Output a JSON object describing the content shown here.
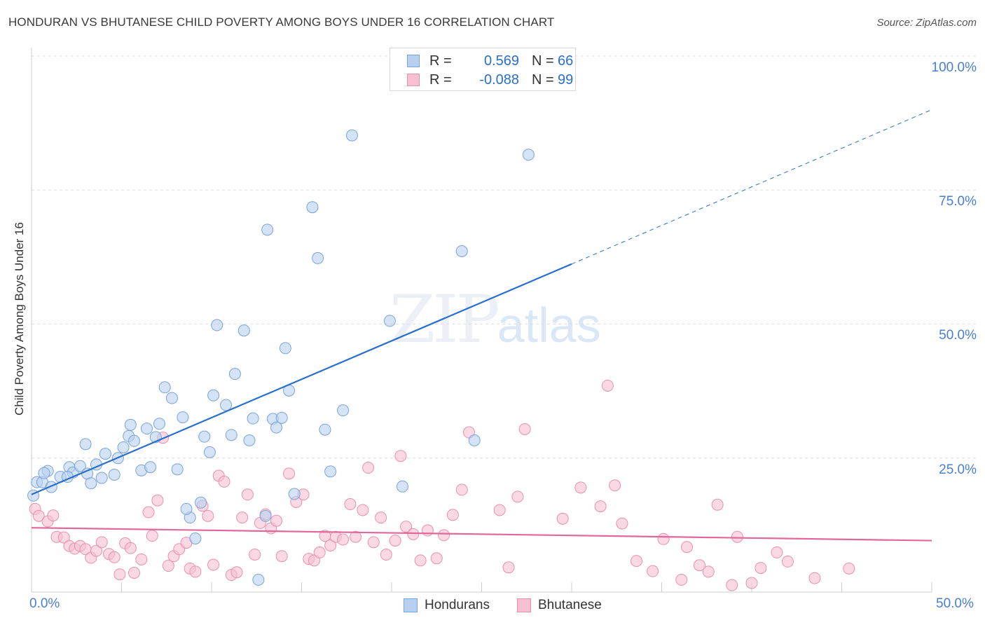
{
  "title": "HONDURAN VS BHUTANESE CHILD POVERTY AMONG BOYS UNDER 16 CORRELATION CHART",
  "source": "Source: ZipAtlas.com",
  "watermark": {
    "part1": "ZIP",
    "part2": "atlas"
  },
  "legend_top": [
    {
      "r_label": "R =",
      "r_value": "0.569",
      "n_label": "N =",
      "n_value": "66"
    },
    {
      "r_label": "R =",
      "r_value": "-0.088",
      "n_label": "N =",
      "n_value": "99"
    }
  ],
  "legend_bottom": [
    "Hondurans",
    "Bhutanese"
  ],
  "colors": {
    "hondurans_fill": "#b8d0f0",
    "hondurans_stroke": "#7aa3d9",
    "hondurans_line": "#2a6fcc",
    "bhutanese_fill": "#f7c0d2",
    "bhutanese_stroke": "#e890b0",
    "bhutanese_line": "#e0689a",
    "tick_text": "#4a7fd0",
    "grid": "#dddddd"
  },
  "chart_data": {
    "type": "scatter",
    "title": "HONDURAN VS BHUTANESE CHILD POVERTY AMONG BOYS UNDER 16 CORRELATION CHART",
    "xlabel": "",
    "ylabel": "Child Poverty Among Boys Under 16",
    "xlim": [
      0,
      50
    ],
    "ylim": [
      0,
      100
    ],
    "x_tick_labels": [
      "0.0%",
      "50.0%"
    ],
    "y_ticks": [
      25,
      50,
      75,
      100
    ],
    "y_tick_labels": [
      "25.0%",
      "50.0%",
      "75.0%",
      "100.0%"
    ],
    "grid": true,
    "series": [
      {
        "name": "Hondurans",
        "stats": {
          "R": 0.569,
          "N": 66
        },
        "trend": {
          "x0": 0,
          "y0": 18.2,
          "x1": 30,
          "y1": 61.2,
          "dashed_to_x": 50,
          "dashed_to_y": 90.0
        },
        "points": [
          [
            0.1,
            18.0
          ],
          [
            0.3,
            20.5
          ],
          [
            0.6,
            20.5
          ],
          [
            0.9,
            22.6
          ],
          [
            1.6,
            21.5
          ],
          [
            2.1,
            23.3
          ],
          [
            2.3,
            22.3
          ],
          [
            2.7,
            23.5
          ],
          [
            3.1,
            22.1
          ],
          [
            3.3,
            20.3
          ],
          [
            3.6,
            23.8
          ],
          [
            3.9,
            21.3
          ],
          [
            4.1,
            25.8
          ],
          [
            4.6,
            21.9
          ],
          [
            4.8,
            25.0
          ],
          [
            5.1,
            27.0
          ],
          [
            5.4,
            29.1
          ],
          [
            5.7,
            28.2
          ],
          [
            6.1,
            22.7
          ],
          [
            6.4,
            30.5
          ],
          [
            6.6,
            23.3
          ],
          [
            6.9,
            28.9
          ],
          [
            7.1,
            31.4
          ],
          [
            7.4,
            38.2
          ],
          [
            7.8,
            36.2
          ],
          [
            8.1,
            22.9
          ],
          [
            8.4,
            32.6
          ],
          [
            8.8,
            13.9
          ],
          [
            9.1,
            10.0
          ],
          [
            9.4,
            16.7
          ],
          [
            9.6,
            29.0
          ],
          [
            9.9,
            26.1
          ],
          [
            10.1,
            36.7
          ],
          [
            10.3,
            49.8
          ],
          [
            10.8,
            34.9
          ],
          [
            11.1,
            29.3
          ],
          [
            11.3,
            40.7
          ],
          [
            11.8,
            48.8
          ],
          [
            12.1,
            28.3
          ],
          [
            12.3,
            32.4
          ],
          [
            12.6,
            2.3
          ],
          [
            13.1,
            67.6
          ],
          [
            13.4,
            32.3
          ],
          [
            13.6,
            30.7
          ],
          [
            13.9,
            32.5
          ],
          [
            14.1,
            45.5
          ],
          [
            14.3,
            37.6
          ],
          [
            14.6,
            18.3
          ],
          [
            15.6,
            71.8
          ],
          [
            15.9,
            62.3
          ],
          [
            16.3,
            30.3
          ],
          [
            16.6,
            22.5
          ],
          [
            17.3,
            33.9
          ],
          [
            17.8,
            85.2
          ],
          [
            19.9,
            50.6
          ],
          [
            20.6,
            19.7
          ],
          [
            23.9,
            63.6
          ],
          [
            24.6,
            28.3
          ],
          [
            27.6,
            81.6
          ],
          [
            1.1,
            19.6
          ],
          [
            3.0,
            27.6
          ],
          [
            5.5,
            31.2
          ],
          [
            2.0,
            21.5
          ],
          [
            0.7,
            22.2
          ],
          [
            8.6,
            15.5
          ],
          [
            13.0,
            14.2
          ]
        ]
      },
      {
        "name": "Bhutanese",
        "stats": {
          "R": -0.088,
          "N": 99
        },
        "trend": {
          "x0": 0,
          "y0": 12.0,
          "x1": 50,
          "y1": 9.6
        },
        "points": [
          [
            0.2,
            15.5
          ],
          [
            0.4,
            14.2
          ],
          [
            0.9,
            13.2
          ],
          [
            1.2,
            14.3
          ],
          [
            1.4,
            10.3
          ],
          [
            1.8,
            10.2
          ],
          [
            2.1,
            8.6
          ],
          [
            2.4,
            8.1
          ],
          [
            2.7,
            8.6
          ],
          [
            3.0,
            8.0
          ],
          [
            3.3,
            6.4
          ],
          [
            3.6,
            7.7
          ],
          [
            3.9,
            9.3
          ],
          [
            4.3,
            7.1
          ],
          [
            4.6,
            6.5
          ],
          [
            4.9,
            3.3
          ],
          [
            5.2,
            9.1
          ],
          [
            5.5,
            8.2
          ],
          [
            5.7,
            3.6
          ],
          [
            6.1,
            6.1
          ],
          [
            6.5,
            14.9
          ],
          [
            6.7,
            10.5
          ],
          [
            7.0,
            17.1
          ],
          [
            7.3,
            28.8
          ],
          [
            7.6,
            4.9
          ],
          [
            7.9,
            6.7
          ],
          [
            8.2,
            8.0
          ],
          [
            8.6,
            9.2
          ],
          [
            8.8,
            4.4
          ],
          [
            9.1,
            3.8
          ],
          [
            9.5,
            16.1
          ],
          [
            9.8,
            14.2
          ],
          [
            10.1,
            5.1
          ],
          [
            10.4,
            21.7
          ],
          [
            10.7,
            20.6
          ],
          [
            11.1,
            3.2
          ],
          [
            11.4,
            3.7
          ],
          [
            11.7,
            13.9
          ],
          [
            12.0,
            18.2
          ],
          [
            12.4,
            7.0
          ],
          [
            12.7,
            12.9
          ],
          [
            13.0,
            14.5
          ],
          [
            13.3,
            11.9
          ],
          [
            13.6,
            13.3
          ],
          [
            13.9,
            6.7
          ],
          [
            14.3,
            22.1
          ],
          [
            14.7,
            16.8
          ],
          [
            15.1,
            18.2
          ],
          [
            15.4,
            6.2
          ],
          [
            15.7,
            5.9
          ],
          [
            16.0,
            7.4
          ],
          [
            16.3,
            10.5
          ],
          [
            16.6,
            8.7
          ],
          [
            16.9,
            10.3
          ],
          [
            17.3,
            9.8
          ],
          [
            17.7,
            16.4
          ],
          [
            18.0,
            10.3
          ],
          [
            18.4,
            15.3
          ],
          [
            18.7,
            23.2
          ],
          [
            19.0,
            9.3
          ],
          [
            19.4,
            13.9
          ],
          [
            19.7,
            7.0
          ],
          [
            20.2,
            9.6
          ],
          [
            20.5,
            25.4
          ],
          [
            20.8,
            12.2
          ],
          [
            21.2,
            10.8
          ],
          [
            21.6,
            5.9
          ],
          [
            22.0,
            11.5
          ],
          [
            22.5,
            6.3
          ],
          [
            22.9,
            10.6
          ],
          [
            23.4,
            14.4
          ],
          [
            23.9,
            19.1
          ],
          [
            24.3,
            29.8
          ],
          [
            26.0,
            15.3
          ],
          [
            26.5,
            4.6
          ],
          [
            27.0,
            17.8
          ],
          [
            27.4,
            30.4
          ],
          [
            29.5,
            13.7
          ],
          [
            30.5,
            19.5
          ],
          [
            31.6,
            16.0
          ],
          [
            32.0,
            38.5
          ],
          [
            32.4,
            19.9
          ],
          [
            32.8,
            12.8
          ],
          [
            33.6,
            5.8
          ],
          [
            34.5,
            3.9
          ],
          [
            35.1,
            9.9
          ],
          [
            36.1,
            2.3
          ],
          [
            36.4,
            8.4
          ],
          [
            37.1,
            5.0
          ],
          [
            37.6,
            3.8
          ],
          [
            38.1,
            16.3
          ],
          [
            38.9,
            1.3
          ],
          [
            39.2,
            10.3
          ],
          [
            40.0,
            1.7
          ],
          [
            40.5,
            4.5
          ],
          [
            41.4,
            7.4
          ],
          [
            42.0,
            5.7
          ],
          [
            43.5,
            2.6
          ],
          [
            45.4,
            4.4
          ]
        ]
      }
    ]
  }
}
